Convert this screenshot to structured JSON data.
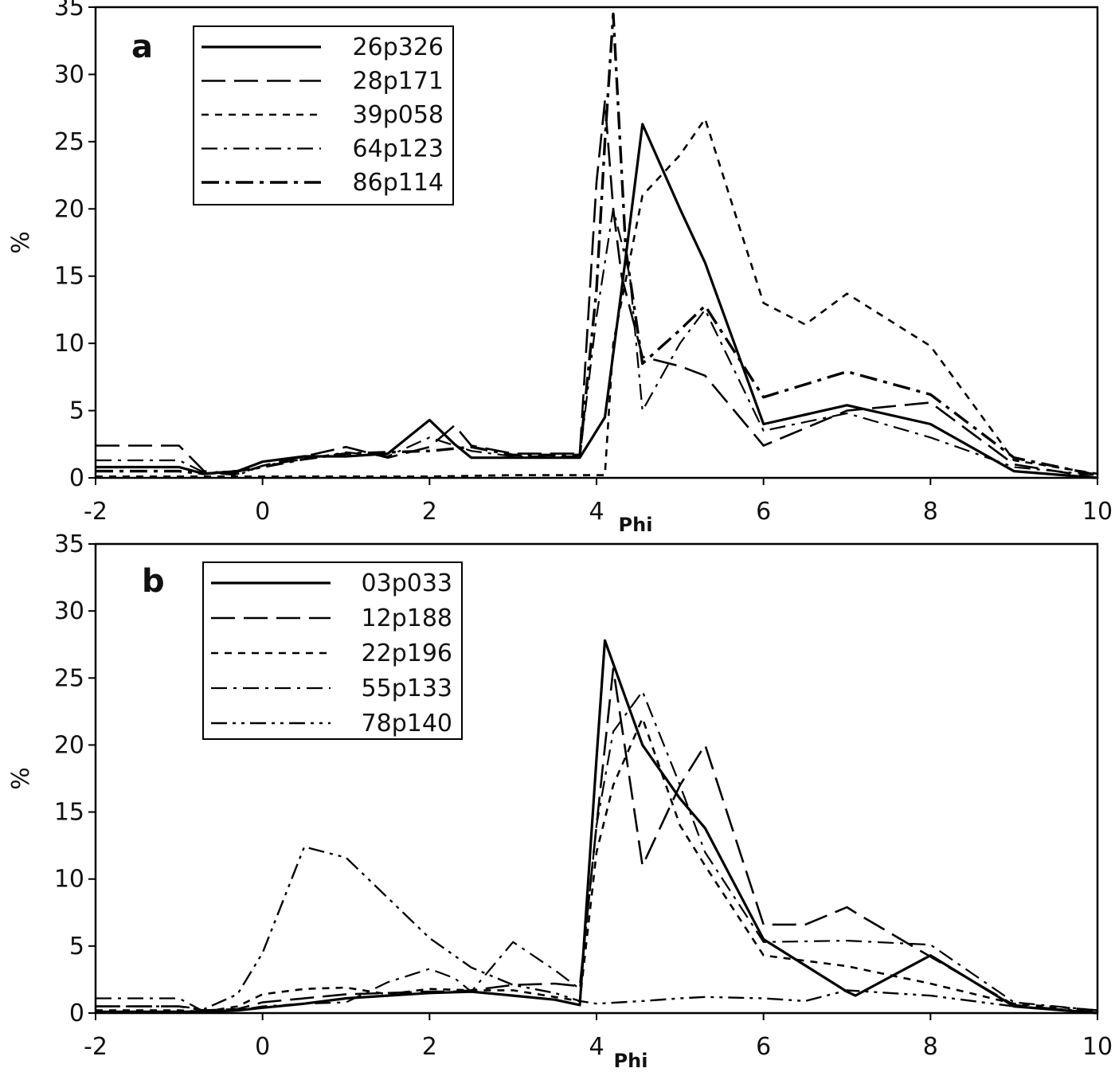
{
  "chart_data": [
    {
      "type": "line",
      "panel_label": "a",
      "xlabel": "Phi",
      "ylabel": "%",
      "xlim": [
        -2,
        10
      ],
      "ylim": [
        0,
        35
      ],
      "xticks": [
        "-2",
        "0",
        "2",
        "4",
        "6",
        "8",
        "10"
      ],
      "yticks": [
        "0",
        "5",
        "10",
        "15",
        "20",
        "25",
        "30",
        "35"
      ],
      "legend_position": "top-left",
      "grid": false,
      "series": [
        {
          "name": "26p326",
          "style": "solid",
          "x": [
            -2,
            -1,
            -0.7,
            -0.3,
            0,
            0.5,
            1,
            1.5,
            2,
            2.3,
            2.5,
            3,
            3.5,
            3.8,
            4.1,
            4.3,
            4.55,
            5,
            5.3,
            6,
            7,
            8,
            9,
            10
          ],
          "y": [
            0.8,
            0.8,
            0.3,
            0.5,
            1.2,
            1.6,
            1.6,
            1.8,
            4.3,
            2.5,
            1.5,
            1.5,
            1.5,
            1.5,
            4.5,
            14,
            26.3,
            20,
            16,
            4,
            5.4,
            4,
            0.5,
            0
          ]
        },
        {
          "name": "28p171",
          "style": "longdash",
          "x": [
            -2,
            -1,
            -0.7,
            -0.3,
            0,
            0.5,
            1,
            1.5,
            2,
            2.3,
            2.5,
            3,
            3.5,
            3.8,
            4,
            4.1,
            4.2,
            4.3,
            4.55,
            5,
            5.3,
            6,
            7,
            8,
            9,
            10
          ],
          "y": [
            2.4,
            2.4,
            0.5,
            0.3,
            0.9,
            1.6,
            2.3,
            1.5,
            2.3,
            3.9,
            2.4,
            1.8,
            1.8,
            1.8,
            22,
            28,
            20,
            15,
            9,
            8.3,
            7.6,
            2.4,
            5,
            5.6,
            1,
            0
          ]
        },
        {
          "name": "39p058",
          "style": "dotted",
          "x": [
            -2,
            -1,
            0,
            1,
            2,
            3,
            4,
            4.1,
            4.2,
            4.55,
            5,
            5.3,
            6,
            6.5,
            7,
            8,
            9,
            10
          ],
          "y": [
            0.1,
            0.1,
            0.1,
            0.1,
            0.1,
            0.2,
            0.2,
            0.2,
            10,
            21,
            24,
            26.7,
            13,
            11.4,
            13.7,
            9.8,
            1.3,
            0.3
          ]
        },
        {
          "name": "64p123",
          "style": "dashdot",
          "x": [
            -2,
            -1,
            -0.7,
            -0.3,
            0,
            0.5,
            1,
            1.5,
            2,
            2.5,
            3,
            3.5,
            3.8,
            4,
            4.2,
            4.4,
            4.55,
            5,
            5.3,
            6,
            7,
            8,
            9,
            10
          ],
          "y": [
            1.3,
            1.3,
            0.4,
            0.2,
            0.9,
            1.4,
            1.9,
            1.6,
            3,
            2,
            1.6,
            1.6,
            1.6,
            12,
            20,
            15,
            5,
            10,
            12.5,
            3.5,
            4.8,
            3,
            0.8,
            0.2
          ]
        },
        {
          "name": "86p114",
          "style": "dashdotbold",
          "x": [
            -2,
            -1,
            -0.7,
            -0.3,
            0,
            0.5,
            1,
            1.5,
            2,
            2.5,
            3,
            3.5,
            3.8,
            4,
            4.1,
            4.2,
            4.35,
            4.55,
            5,
            5.3,
            6,
            7,
            8,
            9,
            10
          ],
          "y": [
            0.5,
            0.5,
            0.3,
            0.5,
            0.8,
            1.4,
            1.8,
            1.9,
            2,
            2.3,
            1.7,
            1.7,
            1.7,
            14,
            25,
            34.5,
            17,
            8.5,
            11,
            12.8,
            6,
            7.9,
            6.2,
            1.5,
            0.2
          ]
        }
      ]
    },
    {
      "type": "line",
      "panel_label": "b",
      "xlabel": "Phi",
      "ylabel": "%",
      "xlim": [
        -2,
        10
      ],
      "ylim": [
        0,
        35
      ],
      "xticks": [
        "-2",
        "0",
        "2",
        "4",
        "6",
        "8",
        "10"
      ],
      "yticks": [
        "0",
        "5",
        "10",
        "15",
        "20",
        "25",
        "30",
        "35"
      ],
      "legend_position": "top-left",
      "grid": false,
      "series": [
        {
          "name": "03p033",
          "style": "solid",
          "x": [
            -2,
            -1,
            -0.7,
            -0.3,
            0,
            0.5,
            1,
            1.5,
            2,
            2.5,
            3,
            3.5,
            3.8,
            4,
            4.1,
            4.55,
            5,
            5.3,
            6,
            7,
            7.1,
            8,
            9,
            10
          ],
          "y": [
            0.1,
            0.1,
            0.1,
            0.2,
            0.4,
            0.7,
            1.1,
            1.3,
            1.5,
            1.6,
            1.3,
            1.0,
            0.6,
            19,
            27.8,
            20,
            16,
            13.8,
            5.5,
            1.6,
            1.3,
            4.3,
            0.5,
            0
          ]
        },
        {
          "name": "12p188",
          "style": "longdash",
          "x": [
            -2,
            -1,
            -0.7,
            -0.3,
            0,
            0.5,
            1,
            1.5,
            2,
            2.3,
            2.5,
            3,
            3.5,
            3.8,
            4,
            4.2,
            4.55,
            5,
            5.3,
            6,
            6.5,
            7,
            7.1,
            8,
            9,
            10
          ],
          "y": [
            0.5,
            0.5,
            0.2,
            0.3,
            0.8,
            1.1,
            1.4,
            1.5,
            1.6,
            1.6,
            1.7,
            2.1,
            2.2,
            2.0,
            14,
            25.7,
            11,
            17,
            20,
            6.6,
            6.6,
            7.9,
            7.5,
            4.2,
            0.6,
            0
          ]
        },
        {
          "name": "22p196",
          "style": "dotted",
          "x": [
            -2,
            -1,
            -0.7,
            -0.3,
            0,
            0.5,
            1,
            1.5,
            2,
            2.5,
            3,
            3.5,
            3.8,
            4,
            4.2,
            4.55,
            5,
            5.3,
            6,
            7,
            8,
            9,
            10
          ],
          "y": [
            0.2,
            0.2,
            0.1,
            0.5,
            1.4,
            1.8,
            1.9,
            1.4,
            1.8,
            1.7,
            1.7,
            1.2,
            0.9,
            12,
            17,
            22,
            14,
            11,
            4.3,
            3.5,
            2.2,
            0.7,
            0.2
          ]
        },
        {
          "name": "55p133",
          "style": "dashdot",
          "x": [
            -2,
            -1,
            -0.7,
            -0.3,
            0,
            0.5,
            1,
            1.5,
            2,
            2.3,
            2.5,
            3,
            3.5,
            3.8,
            4,
            4.2,
            4.55,
            5,
            5.3,
            6,
            7,
            8,
            9,
            10
          ],
          "y": [
            1.1,
            1.1,
            0.1,
            0.2,
            0.5,
            0.7,
            0.8,
            2.3,
            3.3,
            2.6,
            1.6,
            5.3,
            3.2,
            1.8,
            14,
            21,
            24,
            17,
            12,
            5.3,
            5.4,
            5.1,
            0.8,
            0.2
          ]
        },
        {
          "name": "78p140",
          "style": "dashdotdot",
          "x": [
            -2,
            -1,
            -0.7,
            -0.3,
            0,
            0.5,
            1,
            1.5,
            2,
            2.5,
            3,
            3.5,
            3.8,
            4,
            4.55,
            5,
            5.3,
            6,
            6.5,
            7,
            8,
            9,
            10
          ],
          "y": [
            0.5,
            0.5,
            0.3,
            1.4,
            4.5,
            12.4,
            11.6,
            8.6,
            5.6,
            3.4,
            2.1,
            1.5,
            0.9,
            0.7,
            0.9,
            1.1,
            1.2,
            1.1,
            0.9,
            1.7,
            1.3,
            0.5,
            0.1
          ]
        }
      ]
    }
  ]
}
